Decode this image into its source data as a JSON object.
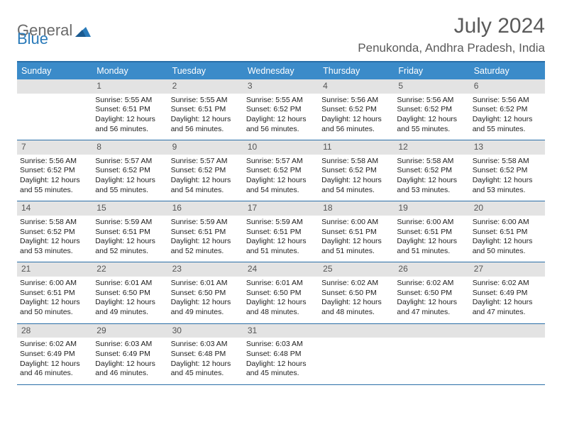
{
  "logo": {
    "part1": "General",
    "part2": "Blue"
  },
  "title": "July 2024",
  "location": "Penukonda, Andhra Pradesh, India",
  "colors": {
    "header_bg": "#3b8bc9",
    "border": "#2a6fa8",
    "daynum_bg": "#e3e3e3",
    "text": "#202020",
    "title_text": "#5a5a5a"
  },
  "weekdays": [
    "Sunday",
    "Monday",
    "Tuesday",
    "Wednesday",
    "Thursday",
    "Friday",
    "Saturday"
  ],
  "first_weekday_offset": 1,
  "days": [
    {
      "n": 1,
      "sunrise": "5:55 AM",
      "sunset": "6:51 PM",
      "daylight": "12 hours and 56 minutes."
    },
    {
      "n": 2,
      "sunrise": "5:55 AM",
      "sunset": "6:51 PM",
      "daylight": "12 hours and 56 minutes."
    },
    {
      "n": 3,
      "sunrise": "5:55 AM",
      "sunset": "6:52 PM",
      "daylight": "12 hours and 56 minutes."
    },
    {
      "n": 4,
      "sunrise": "5:56 AM",
      "sunset": "6:52 PM",
      "daylight": "12 hours and 56 minutes."
    },
    {
      "n": 5,
      "sunrise": "5:56 AM",
      "sunset": "6:52 PM",
      "daylight": "12 hours and 55 minutes."
    },
    {
      "n": 6,
      "sunrise": "5:56 AM",
      "sunset": "6:52 PM",
      "daylight": "12 hours and 55 minutes."
    },
    {
      "n": 7,
      "sunrise": "5:56 AM",
      "sunset": "6:52 PM",
      "daylight": "12 hours and 55 minutes."
    },
    {
      "n": 8,
      "sunrise": "5:57 AM",
      "sunset": "6:52 PM",
      "daylight": "12 hours and 55 minutes."
    },
    {
      "n": 9,
      "sunrise": "5:57 AM",
      "sunset": "6:52 PM",
      "daylight": "12 hours and 54 minutes."
    },
    {
      "n": 10,
      "sunrise": "5:57 AM",
      "sunset": "6:52 PM",
      "daylight": "12 hours and 54 minutes."
    },
    {
      "n": 11,
      "sunrise": "5:58 AM",
      "sunset": "6:52 PM",
      "daylight": "12 hours and 54 minutes."
    },
    {
      "n": 12,
      "sunrise": "5:58 AM",
      "sunset": "6:52 PM",
      "daylight": "12 hours and 53 minutes."
    },
    {
      "n": 13,
      "sunrise": "5:58 AM",
      "sunset": "6:52 PM",
      "daylight": "12 hours and 53 minutes."
    },
    {
      "n": 14,
      "sunrise": "5:58 AM",
      "sunset": "6:52 PM",
      "daylight": "12 hours and 53 minutes."
    },
    {
      "n": 15,
      "sunrise": "5:59 AM",
      "sunset": "6:51 PM",
      "daylight": "12 hours and 52 minutes."
    },
    {
      "n": 16,
      "sunrise": "5:59 AM",
      "sunset": "6:51 PM",
      "daylight": "12 hours and 52 minutes."
    },
    {
      "n": 17,
      "sunrise": "5:59 AM",
      "sunset": "6:51 PM",
      "daylight": "12 hours and 51 minutes."
    },
    {
      "n": 18,
      "sunrise": "6:00 AM",
      "sunset": "6:51 PM",
      "daylight": "12 hours and 51 minutes."
    },
    {
      "n": 19,
      "sunrise": "6:00 AM",
      "sunset": "6:51 PM",
      "daylight": "12 hours and 51 minutes."
    },
    {
      "n": 20,
      "sunrise": "6:00 AM",
      "sunset": "6:51 PM",
      "daylight": "12 hours and 50 minutes."
    },
    {
      "n": 21,
      "sunrise": "6:00 AM",
      "sunset": "6:51 PM",
      "daylight": "12 hours and 50 minutes."
    },
    {
      "n": 22,
      "sunrise": "6:01 AM",
      "sunset": "6:50 PM",
      "daylight": "12 hours and 49 minutes."
    },
    {
      "n": 23,
      "sunrise": "6:01 AM",
      "sunset": "6:50 PM",
      "daylight": "12 hours and 49 minutes."
    },
    {
      "n": 24,
      "sunrise": "6:01 AM",
      "sunset": "6:50 PM",
      "daylight": "12 hours and 48 minutes."
    },
    {
      "n": 25,
      "sunrise": "6:02 AM",
      "sunset": "6:50 PM",
      "daylight": "12 hours and 48 minutes."
    },
    {
      "n": 26,
      "sunrise": "6:02 AM",
      "sunset": "6:50 PM",
      "daylight": "12 hours and 47 minutes."
    },
    {
      "n": 27,
      "sunrise": "6:02 AM",
      "sunset": "6:49 PM",
      "daylight": "12 hours and 47 minutes."
    },
    {
      "n": 28,
      "sunrise": "6:02 AM",
      "sunset": "6:49 PM",
      "daylight": "12 hours and 46 minutes."
    },
    {
      "n": 29,
      "sunrise": "6:03 AM",
      "sunset": "6:49 PM",
      "daylight": "12 hours and 46 minutes."
    },
    {
      "n": 30,
      "sunrise": "6:03 AM",
      "sunset": "6:48 PM",
      "daylight": "12 hours and 45 minutes."
    },
    {
      "n": 31,
      "sunrise": "6:03 AM",
      "sunset": "6:48 PM",
      "daylight": "12 hours and 45 minutes."
    }
  ],
  "labels": {
    "sunrise": "Sunrise:",
    "sunset": "Sunset:",
    "daylight": "Daylight:"
  }
}
